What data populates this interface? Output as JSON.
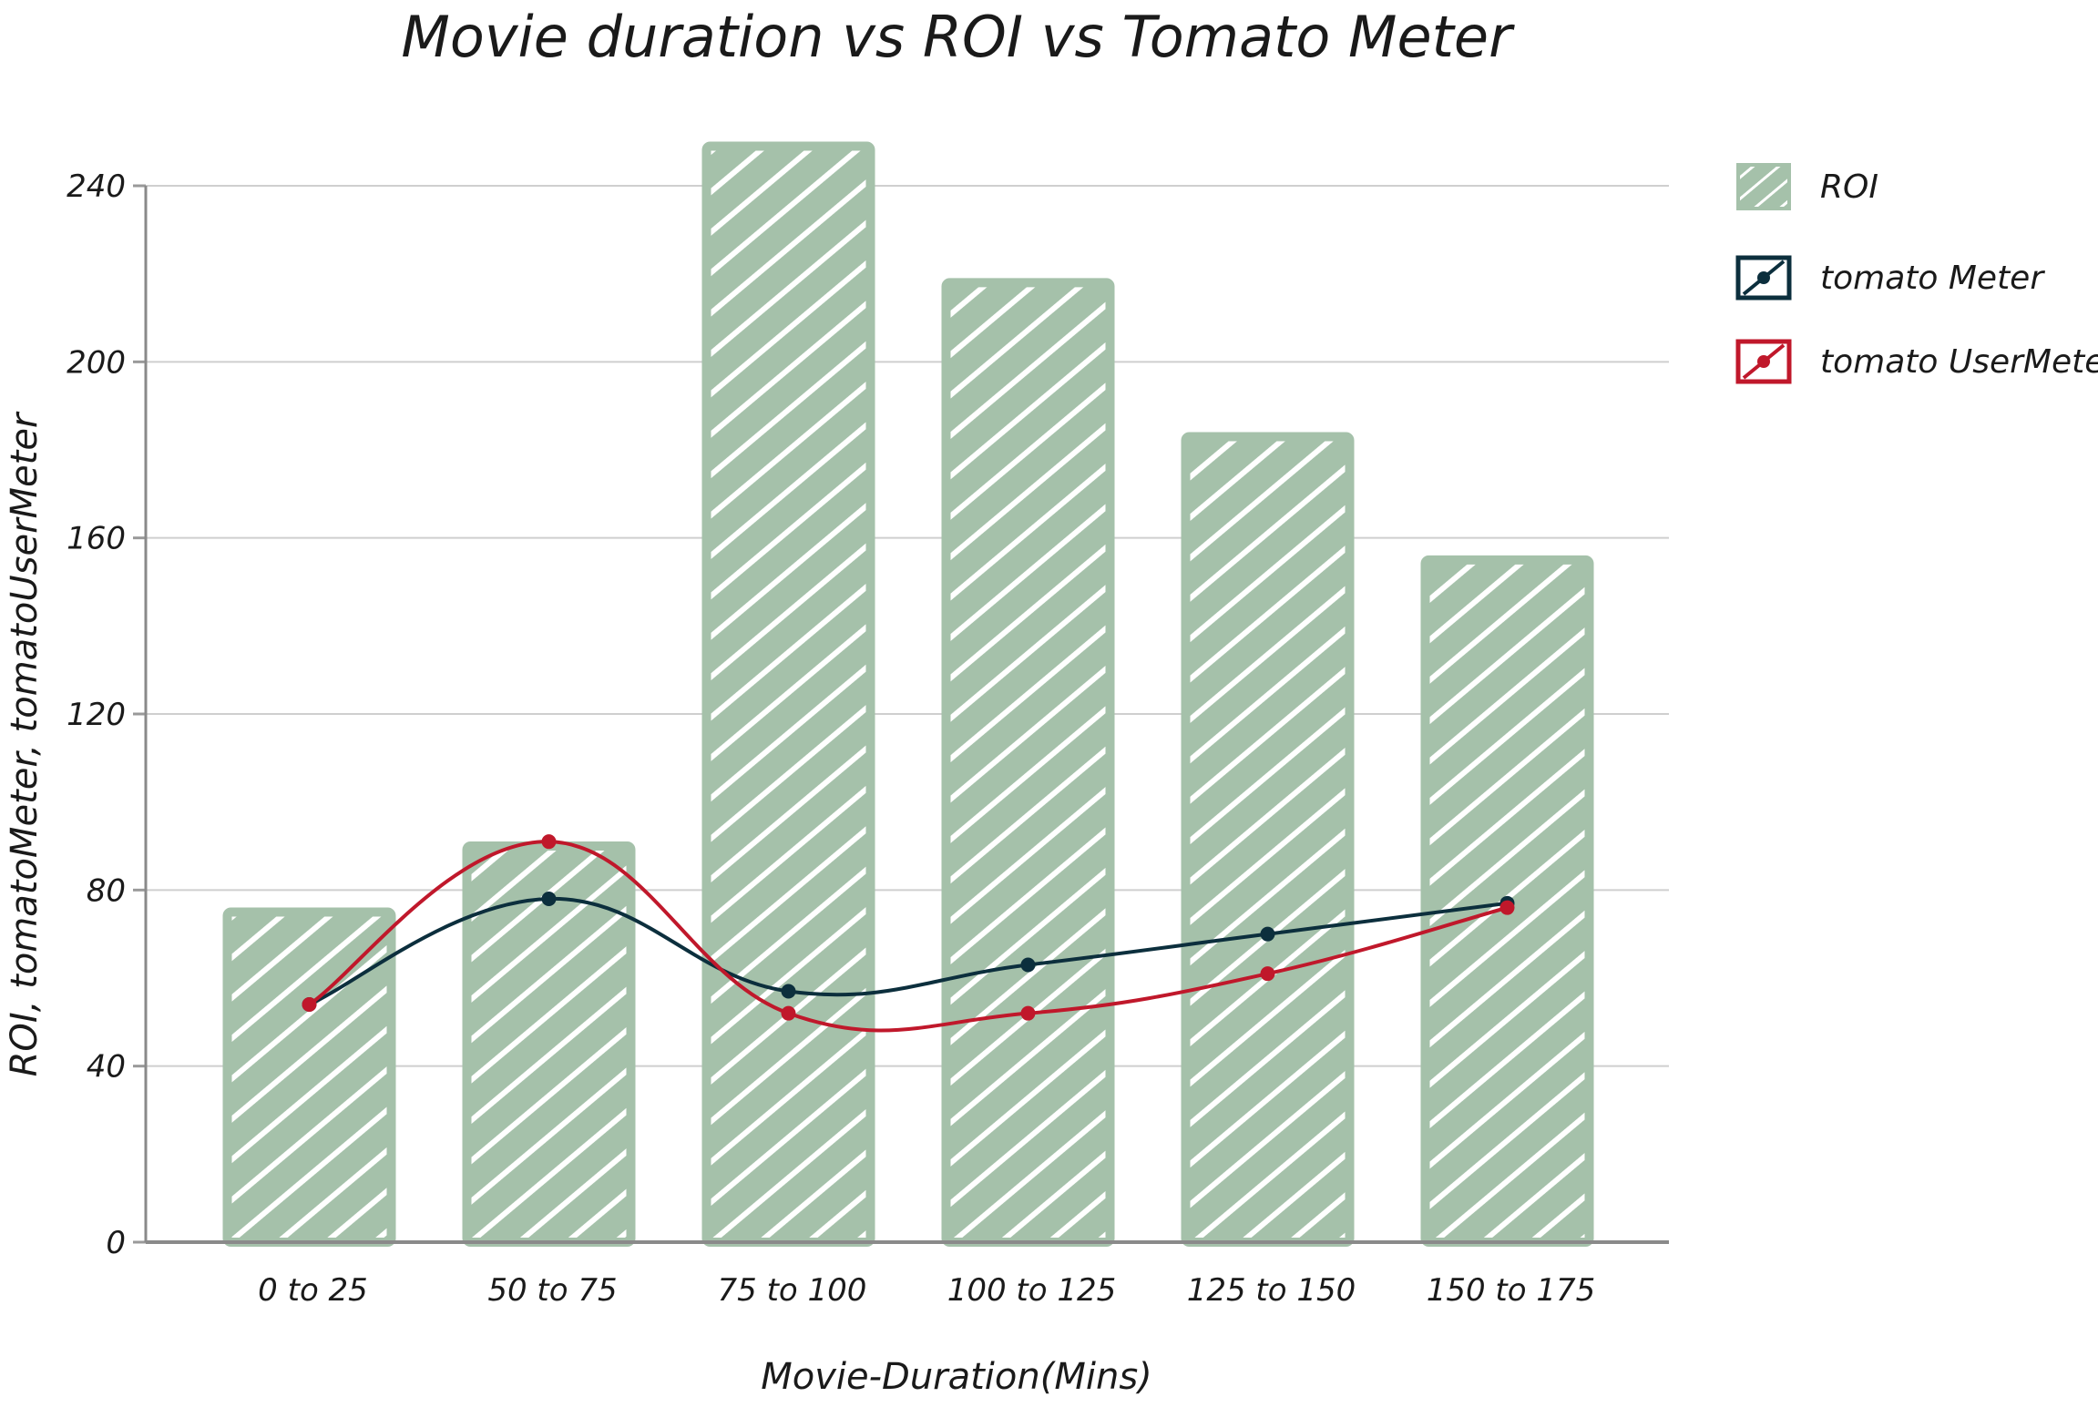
{
  "chart_data": {
    "type": "bar",
    "title": "Movie duration vs ROI vs Tomato Meter",
    "xlabel": "Movie-Duration(Mins)",
    "ylabel": "ROI, tomatoMeter, tomatoUserMeter",
    "ylim": [
      0,
      240
    ],
    "yticks": [
      "0",
      "40",
      "80",
      "120",
      "160",
      "200",
      "240"
    ],
    "grid": true,
    "legend_position": "right",
    "categories": [
      "0 to 25",
      "50 to 75",
      "75 to 100",
      "100 to 125",
      "125 to 150",
      "150 to 175"
    ],
    "series": [
      {
        "name": "ROI",
        "type": "bar",
        "color": "#a5c1aa",
        "values": [
          75,
          90,
          249,
          218,
          183,
          155
        ]
      },
      {
        "name": "tomato Meter",
        "type": "line",
        "color": "#0c2f3d",
        "values": [
          54,
          78,
          57,
          63,
          70,
          77
        ]
      },
      {
        "name": "tomato UserMeter",
        "type": "line",
        "color": "#c0182b",
        "values": [
          54,
          91,
          52,
          52,
          61,
          76
        ]
      }
    ]
  }
}
